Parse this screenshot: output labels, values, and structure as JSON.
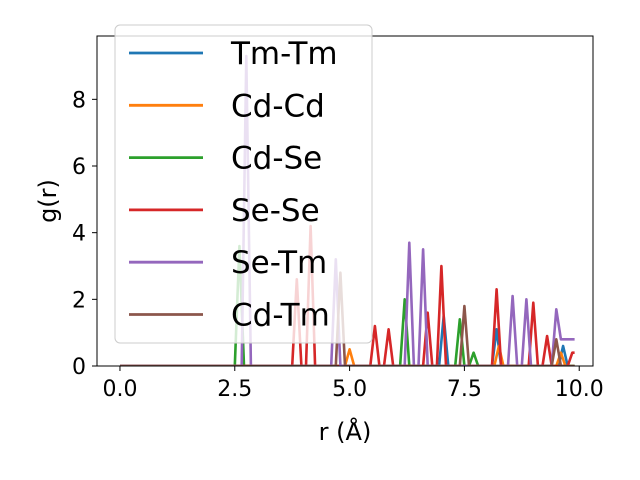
{
  "chart_data": {
    "type": "line",
    "xlabel": "r (Å)",
    "ylabel": "g(r)",
    "xlim": [
      -0.5,
      10.3
    ],
    "ylim": [
      0,
      9.9
    ],
    "xticks": [
      0.0,
      2.5,
      5.0,
      7.5,
      10.0
    ],
    "xtick_labels": [
      "0.0",
      "2.5",
      "5.0",
      "7.5",
      "10.0"
    ],
    "yticks": [
      0,
      2,
      4,
      6,
      8
    ],
    "ytick_labels": [
      "0",
      "2",
      "4",
      "6",
      "8"
    ],
    "grid": false,
    "legend_position": "upper-left",
    "series": [
      {
        "name": "Tm-Tm",
        "color": "#1f77b4",
        "x": [
          0.0,
          6.95,
          7.05,
          7.15,
          8.1,
          8.2,
          8.3,
          9.55,
          9.65,
          9.75,
          9.9
        ],
        "y": [
          0,
          0,
          1.5,
          0,
          0,
          1.1,
          0,
          0,
          0.6,
          0,
          0
        ]
      },
      {
        "name": "Cd-Cd",
        "color": "#ff7f0e",
        "x": [
          0.0,
          4.9,
          5.0,
          5.1,
          8.15,
          8.25,
          8.35,
          9.5,
          9.6,
          9.7,
          9.9
        ],
        "y": [
          0,
          0,
          0.5,
          0,
          0,
          0.6,
          0,
          0,
          0.4,
          0,
          0
        ]
      },
      {
        "name": "Cd-Se",
        "color": "#2ca02c",
        "x": [
          0.0,
          2.5,
          2.6,
          2.7,
          6.1,
          6.2,
          6.3,
          7.3,
          7.4,
          7.5,
          7.6,
          7.7,
          7.8,
          9.9
        ],
        "y": [
          0,
          0,
          3.6,
          0,
          0,
          2.0,
          0,
          0,
          1.4,
          0,
          0,
          0.4,
          0,
          0
        ]
      },
      {
        "name": "Se-Se",
        "color": "#d62728",
        "x": [
          0.0,
          3.75,
          3.85,
          3.95,
          4.05,
          4.15,
          4.25,
          5.45,
          5.55,
          5.65,
          5.75,
          5.85,
          5.95,
          6.6,
          6.7,
          6.8,
          6.9,
          7.0,
          7.1,
          7.2,
          8.1,
          8.2,
          8.3,
          8.9,
          9.0,
          9.1,
          9.2,
          9.3,
          9.4,
          9.75,
          9.85,
          9.9
        ],
        "y": [
          0,
          0,
          2.6,
          0,
          0,
          4.2,
          0,
          0,
          1.2,
          0,
          0,
          1.1,
          0,
          0,
          1.6,
          0,
          0,
          3.0,
          0,
          0,
          0,
          2.3,
          0,
          0,
          1.9,
          0,
          0,
          0.9,
          0,
          0,
          0.4,
          0.4
        ]
      },
      {
        "name": "Se-Tm",
        "color": "#9467bd",
        "x": [
          0.0,
          2.65,
          2.75,
          2.85,
          4.6,
          4.7,
          4.8,
          6.2,
          6.3,
          6.4,
          6.5,
          6.6,
          6.7,
          8.45,
          8.55,
          8.65,
          8.75,
          8.85,
          8.95,
          9.3,
          9.4,
          9.5,
          9.6,
          9.7,
          9.9
        ],
        "y": [
          0,
          0,
          9.3,
          0,
          0,
          3.2,
          0,
          0,
          3.7,
          0,
          0,
          3.5,
          0,
          0,
          2.1,
          0,
          0,
          2.0,
          0,
          0,
          0,
          1.7,
          0.8,
          0.8,
          0.8
        ]
      },
      {
        "name": "Cd-Tm",
        "color": "#8c564b",
        "x": [
          0.0,
          4.7,
          4.8,
          4.9,
          7.4,
          7.5,
          7.6,
          9.4,
          9.5,
          9.6,
          9.9
        ],
        "y": [
          0,
          0,
          2.8,
          0,
          0,
          1.8,
          0,
          0,
          0.8,
          0,
          0
        ]
      }
    ]
  }
}
